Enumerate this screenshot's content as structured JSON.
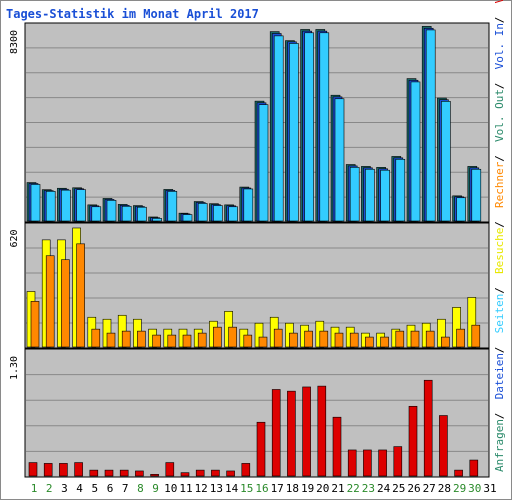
{
  "title": "Tages-Statistik im Monat April 2017",
  "legend": [
    {
      "text": "Anfragen",
      "color": "#2a8a6a"
    },
    {
      "text": "Dateien",
      "color": "#1a4fd6"
    },
    {
      "text": "Seiten",
      "color": "#33ccff"
    },
    {
      "text": "Besuche",
      "color": "#e8e800"
    },
    {
      "text": "Rechner",
      "color": "#ff8800"
    },
    {
      "text": "Vol. Out",
      "color": "#2a8a6a"
    },
    {
      "text": "Vol. In",
      "color": "#1a4fd6"
    },
    {
      "text": "Volumen",
      "color": "#dd0000"
    }
  ],
  "colors": {
    "plot_bg": "#c0c0c0",
    "grid": "#888888",
    "anfragen": "#1b6b6b",
    "dateien": "#1a4fd6",
    "seiten": "#33ccff",
    "besuche": "#ffff00",
    "rechner": "#ff8800",
    "volumen": "#dd0000",
    "weekday": "#000000",
    "weekend": "#2a8a2a"
  },
  "chart_data": {
    "type": "bar",
    "title": "Tages-Statistik im Monat April 2017",
    "categories": [
      "1",
      "2",
      "3",
      "4",
      "5",
      "6",
      "7",
      "8",
      "9",
      "10",
      "11",
      "12",
      "13",
      "14",
      "15",
      "16",
      "17",
      "18",
      "19",
      "20",
      "21",
      "22",
      "23",
      "24",
      "25",
      "26",
      "27",
      "28",
      "29",
      "30",
      "31"
    ],
    "weekend_days": [
      "1",
      "2",
      "8",
      "9",
      "15",
      "16",
      "22",
      "23",
      "29",
      "30"
    ],
    "panels": [
      {
        "name": "hits",
        "max_label": "8300",
        "ylim": [
          0,
          8300
        ],
        "series": [
          {
            "name": "Anfragen",
            "values": [
              1620,
              1320,
              1380,
              1400,
              680,
              950,
              700,
              650,
              170,
              1330,
              330,
              820,
              730,
              680,
              1430,
              5050,
              7980,
              7600,
              8070,
              8070,
              5300,
              2380,
              2300,
              2260,
              2720,
              6000,
              8200,
              5180,
              1060,
              2300,
              0
            ]
          },
          {
            "name": "Dateien",
            "values": [
              1580,
              1280,
              1340,
              1360,
              640,
              910,
              660,
              610,
              140,
              1290,
              300,
              780,
              690,
              640,
              1390,
              4980,
              7900,
              7550,
              8000,
              8000,
              5230,
              2320,
              2240,
              2200,
              2660,
              5930,
              8120,
              5110,
              1020,
              2240,
              0
            ]
          },
          {
            "name": "Seiten",
            "values": [
              1540,
              1250,
              1300,
              1320,
              600,
              870,
              620,
              580,
              110,
              1250,
              270,
              740,
              650,
              600,
              1350,
              4900,
              7800,
              7480,
              7930,
              7930,
              5150,
              2260,
              2180,
              2140,
              2600,
              5860,
              8050,
              5040,
              980,
              2180,
              0
            ]
          }
        ]
      },
      {
        "name": "visits",
        "max_label": "620",
        "ylim": [
          0,
          620
        ],
        "series": [
          {
            "name": "Besuche",
            "values": [
              280,
              540,
              540,
              600,
              150,
              140,
              160,
              140,
              90,
              90,
              90,
              90,
              130,
              180,
              90,
              120,
              150,
              120,
              110,
              130,
              100,
              100,
              70,
              70,
              90,
              110,
              120,
              140,
              200,
              250,
              0
            ]
          },
          {
            "name": "Rechner",
            "values": [
              230,
              460,
              440,
              520,
              90,
              70,
              80,
              80,
              60,
              60,
              60,
              70,
              100,
              100,
              60,
              50,
              90,
              70,
              80,
              80,
              70,
              70,
              50,
              50,
              80,
              80,
              80,
              50,
              90,
              110,
              0
            ]
          }
        ]
      },
      {
        "name": "volume",
        "max_label": "1.30",
        "ylim": [
          0,
          1.5
        ],
        "series": [
          {
            "name": "Volumen",
            "values": [
              0.16,
              0.15,
              0.15,
              0.16,
              0.07,
              0.07,
              0.07,
              0.06,
              0.02,
              0.16,
              0.04,
              0.07,
              0.07,
              0.06,
              0.15,
              0.64,
              1.03,
              1.01,
              1.06,
              1.07,
              0.7,
              0.31,
              0.31,
              0.31,
              0.35,
              0.83,
              1.14,
              0.72,
              0.07,
              0.19,
              0
            ]
          }
        ]
      }
    ]
  }
}
